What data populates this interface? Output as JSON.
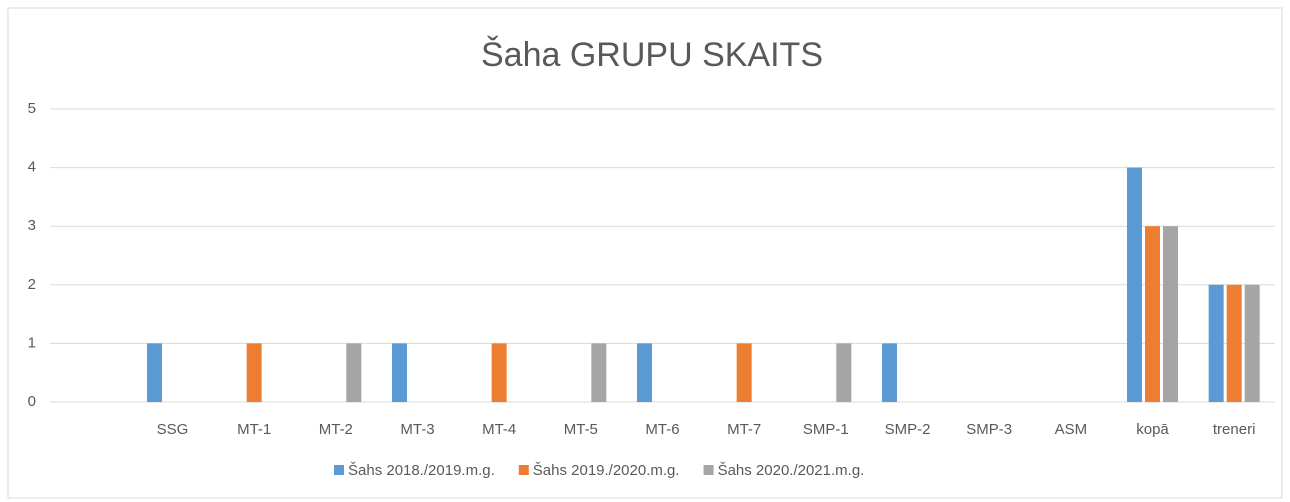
{
  "chart_data": {
    "type": "bar",
    "title": "Šaha GRUPU SKAITS",
    "categories": [
      null,
      "SSG",
      "MT-1",
      "MT-2",
      "MT-3",
      "MT-4",
      "MT-5",
      "MT-6",
      "MT-7",
      "SMP-1",
      "SMP-2",
      "SMP-3",
      "ASM",
      "kopā",
      "treneri"
    ],
    "series": [
      {
        "name": "Šahs 2018./2019.m.g.",
        "color": "#5b9bd5",
        "values": [
          null,
          1,
          0,
          0,
          1,
          0,
          0,
          1,
          0,
          0,
          1,
          0,
          0,
          4,
          2
        ]
      },
      {
        "name": "Šahs 2019./2020.m.g.",
        "color": "#ed7d31",
        "values": [
          null,
          0,
          1,
          0,
          0,
          1,
          0,
          0,
          1,
          0,
          0,
          0,
          0,
          3,
          2
        ]
      },
      {
        "name": "Šahs 2020./2021.m.g.",
        "color": "#a5a5a5",
        "values": [
          null,
          0,
          0,
          1,
          0,
          0,
          1,
          0,
          0,
          1,
          0,
          0,
          0,
          3,
          2
        ]
      }
    ],
    "ylim": [
      0,
      5
    ],
    "yticks": [
      0,
      1,
      2,
      3,
      4,
      5
    ],
    "grid": true,
    "legend": "bottom"
  }
}
